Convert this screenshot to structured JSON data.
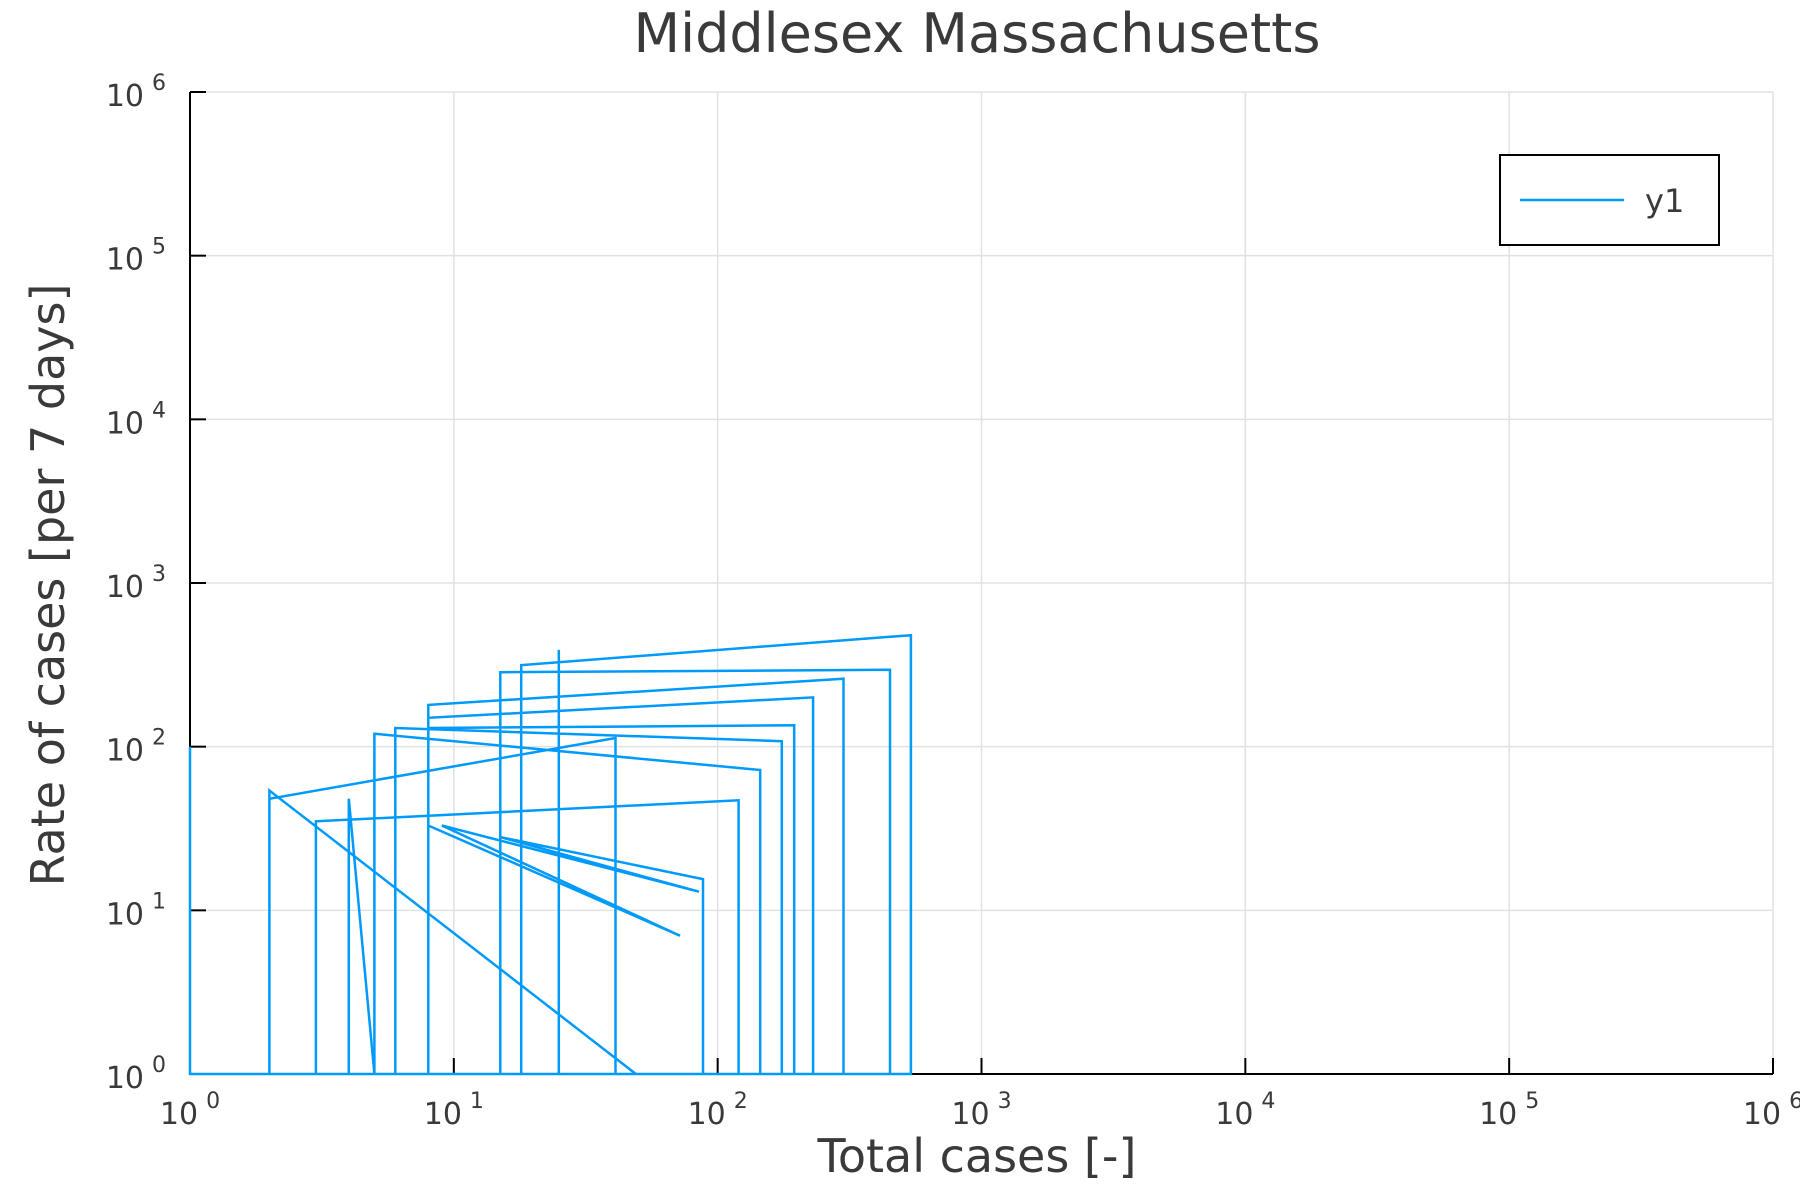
{
  "chart_data": {
    "type": "line",
    "title": "Middlesex Massachusetts",
    "xlabel": "Total cases [-]",
    "ylabel": "Rate of cases [per 7 days]",
    "x_scale": "log",
    "y_scale": "log",
    "xlim": [
      1,
      1000000
    ],
    "ylim": [
      1,
      1000000
    ],
    "x_ticks": [
      {
        "base": "10",
        "exp": "0"
      },
      {
        "base": "10",
        "exp": "1"
      },
      {
        "base": "10",
        "exp": "2"
      },
      {
        "base": "10",
        "exp": "3"
      },
      {
        "base": "10",
        "exp": "4"
      },
      {
        "base": "10",
        "exp": "5"
      },
      {
        "base": "10",
        "exp": "6"
      }
    ],
    "y_ticks": [
      {
        "base": "10",
        "exp": "0"
      },
      {
        "base": "10",
        "exp": "1"
      },
      {
        "base": "10",
        "exp": "2"
      },
      {
        "base": "10",
        "exp": "3"
      },
      {
        "base": "10",
        "exp": "4"
      },
      {
        "base": "10",
        "exp": "5"
      },
      {
        "base": "10",
        "exp": "6"
      }
    ],
    "grid": true,
    "legend_position": "top-right",
    "series": [
      {
        "name": "y1",
        "color": "#009AFA",
        "points": [
          [
            1,
            100
          ],
          [
            1,
            1
          ],
          [
            2,
            1
          ],
          [
            2,
            48
          ],
          [
            41,
            113
          ],
          [
            41,
            1
          ],
          [
            2,
            1
          ],
          [
            2,
            54
          ],
          [
            49,
            1
          ],
          [
            3,
            1
          ],
          [
            3,
            35
          ],
          [
            120,
            47
          ],
          [
            120,
            1
          ],
          [
            4,
            1
          ],
          [
            4,
            48
          ],
          [
            5,
            1
          ],
          [
            5,
            120
          ],
          [
            145,
            72
          ],
          [
            145,
            1
          ],
          [
            6,
            1
          ],
          [
            6,
            130
          ],
          [
            175,
            108
          ],
          [
            175,
            1
          ],
          [
            8,
            1
          ],
          [
            8,
            130
          ],
          [
            195,
            135
          ],
          [
            195,
            1
          ],
          [
            8,
            1
          ],
          [
            8,
            150
          ],
          [
            230,
            200
          ],
          [
            230,
            1
          ],
          [
            8,
            1
          ],
          [
            8,
            180
          ],
          [
            300,
            260
          ],
          [
            300,
            1
          ],
          [
            8,
            1
          ],
          [
            8,
            33
          ],
          [
            72,
            7
          ],
          [
            9,
            33
          ],
          [
            85,
            13
          ],
          [
            15,
            28
          ],
          [
            88,
            15.5
          ],
          [
            88,
            1
          ],
          [
            15,
            1
          ],
          [
            15,
            285
          ],
          [
            450,
            295
          ],
          [
            450,
            1
          ],
          [
            18,
            1
          ],
          [
            18,
            315
          ],
          [
            540,
            480
          ],
          [
            540,
            1
          ],
          [
            25,
            1
          ],
          [
            25,
            390
          ]
        ]
      }
    ]
  }
}
